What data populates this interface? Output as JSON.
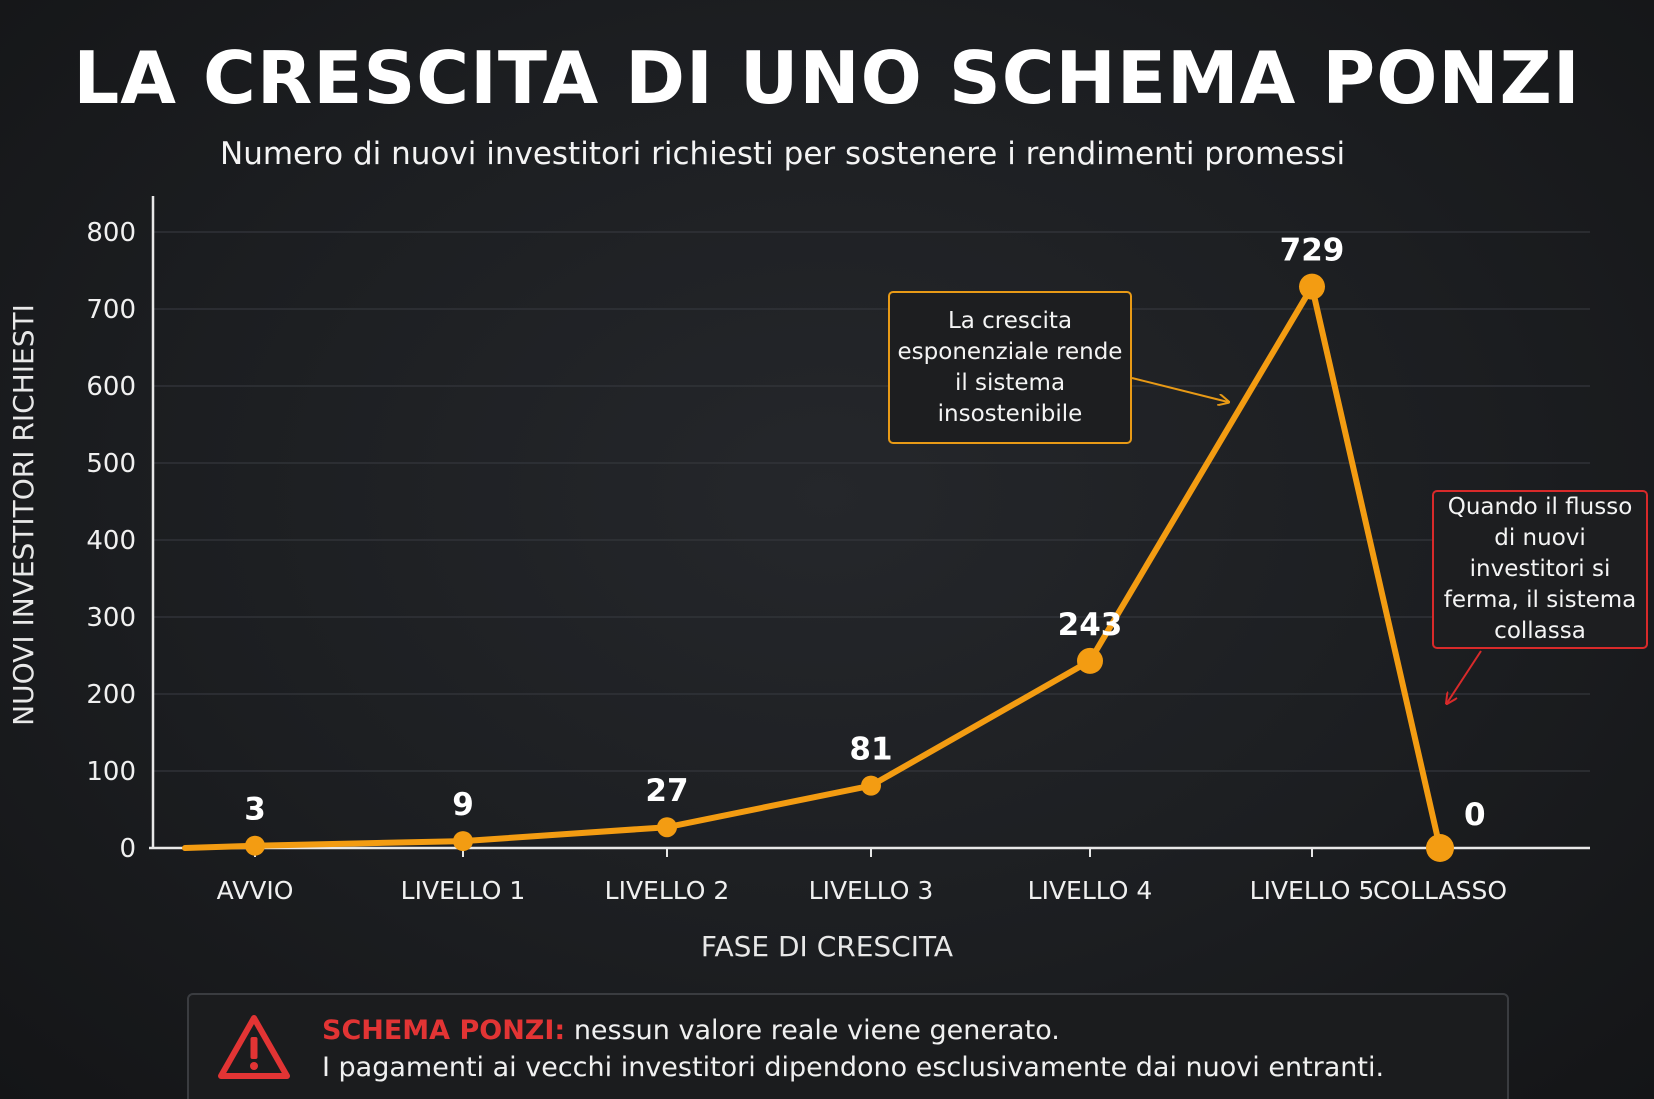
{
  "chart_data": {
    "type": "line",
    "title": "LA CRESCITA DI UNO SCHEMA PONZI",
    "subtitle": "Numero di nuovi investitori richiesti per sostenere i rendimenti promessi",
    "xlabel": "FASE DI CRESCITA",
    "ylabel": "NUOVI INVESTITORI RICHIESTI",
    "categories": [
      "AVVIO",
      "LIVELLO 1",
      "LIVELLO 2",
      "LIVELLO 3",
      "LIVELLO 4",
      "LIVELLO 5",
      "COLLASSO"
    ],
    "values": [
      3,
      9,
      27,
      81,
      243,
      729,
      0
    ],
    "data_labels": [
      "3",
      "9",
      "27",
      "81",
      "243",
      "729",
      "0"
    ],
    "ylim": [
      0,
      800
    ],
    "yticks": [
      0,
      100,
      200,
      300,
      400,
      500,
      600,
      700,
      800
    ],
    "ytick_labels": [
      "0",
      "100",
      "200",
      "300",
      "400",
      "500",
      "600",
      "700",
      "800"
    ],
    "grid": true,
    "line_color": "#f39c12",
    "annotations": [
      {
        "text": "La crescita esponenziale rende il sistema insostenibile",
        "border_color": "#e89a16",
        "points_to": "LIVELLO 5"
      },
      {
        "text": "Quando il flusso di nuovi investitori si ferma, il sistema collassa",
        "border_color": "#d92a2a",
        "points_to": "COLLASSO"
      }
    ]
  },
  "warning": {
    "icon": "warning-triangle-icon",
    "label": "SCHEMA PONZI:",
    "line1": " nessun valore reale viene generato.",
    "line2": "I pagamenti ai vecchi investitori dipendono esclusivamente dai nuovi entranti.",
    "label_color": "#e23434"
  }
}
